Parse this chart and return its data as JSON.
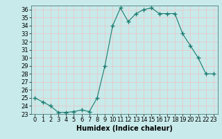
{
  "x": [
    0,
    1,
    2,
    3,
    4,
    5,
    6,
    7,
    8,
    9,
    10,
    11,
    12,
    13,
    14,
    15,
    16,
    17,
    18,
    19,
    20,
    21,
    22,
    23
  ],
  "y": [
    25.0,
    24.5,
    24.0,
    23.2,
    23.2,
    23.3,
    23.5,
    23.3,
    25.0,
    29.0,
    34.0,
    36.2,
    34.5,
    35.5,
    36.0,
    36.2,
    35.5,
    35.5,
    35.5,
    33.0,
    31.5,
    30.0,
    28.0,
    28.0
  ],
  "line_color": "#1a7a6e",
  "marker": "+",
  "marker_size": 4,
  "bg_color": "#c8eaea",
  "grid_color": "#e8c8c8",
  "xlabel": "Humidex (Indice chaleur)",
  "xlim": [
    -0.5,
    23.5
  ],
  "ylim": [
    23,
    36.5
  ],
  "yticks": [
    23,
    24,
    25,
    26,
    27,
    28,
    29,
    30,
    31,
    32,
    33,
    34,
    35,
    36
  ],
  "xticks": [
    0,
    1,
    2,
    3,
    4,
    5,
    6,
    7,
    8,
    9,
    10,
    11,
    12,
    13,
    14,
    15,
    16,
    17,
    18,
    19,
    20,
    21,
    22,
    23
  ],
  "tick_fontsize": 6,
  "xlabel_fontsize": 7,
  "linewidth": 0.8,
  "marker_color": "#1a7a6e"
}
